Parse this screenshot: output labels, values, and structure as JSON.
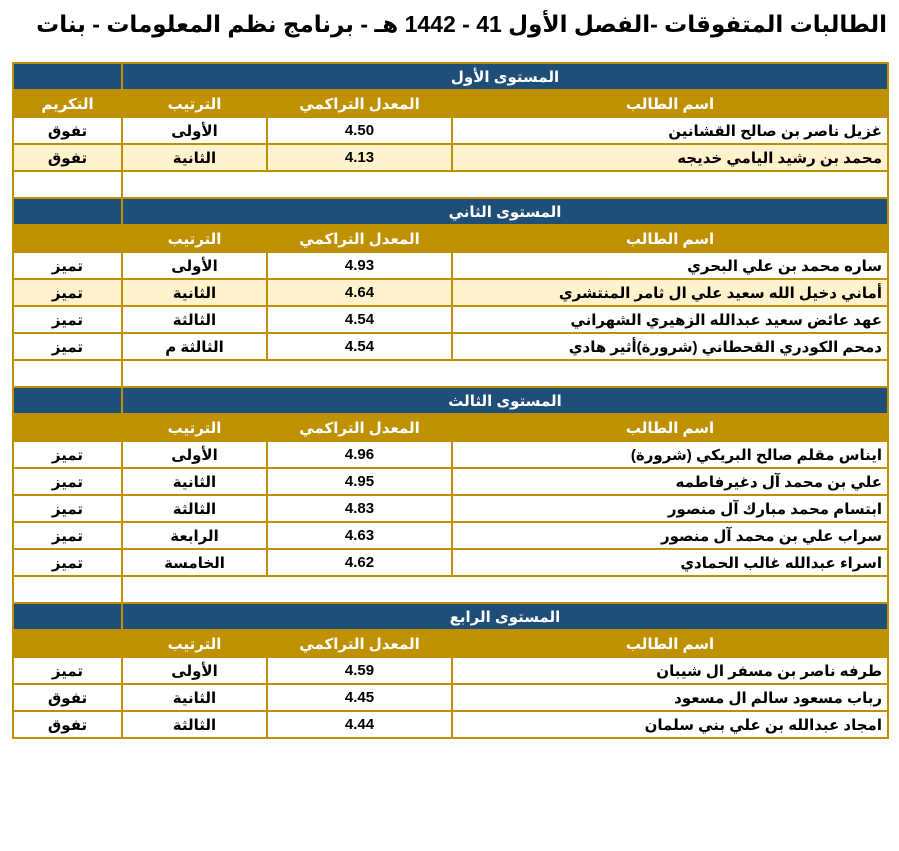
{
  "title": "الطالبات المتفوقات -الفصل الأول 41 - 1442 هـ - برنامج نظم المعلومات - بنات",
  "colors": {
    "level_header": "#1f4e79",
    "column_header": "#bf9000",
    "highlight_row": "#fff2cc",
    "border": "#bf9000"
  },
  "columns": {
    "name": "اسم الطالب",
    "gpa": "المعدل التراكمي",
    "rank": "الترتيب",
    "honor": "التكريم"
  },
  "levels": [
    {
      "title": "المستوى الأول",
      "show_honor_header": true,
      "students": [
        {
          "name": "غزيل ناصر بن صالح القشانين",
          "gpa": "4.50",
          "rank": "الأولى",
          "honor": "تفوق"
        },
        {
          "name": "محمد بن رشيد اليامي خديجه",
          "gpa": "4.13",
          "rank": "الثانية",
          "honor": "تفوق",
          "highlight": true
        }
      ]
    },
    {
      "title": "المستوى الثاني",
      "show_honor_header": false,
      "students": [
        {
          "name": "ساره محمد بن علي البحري",
          "gpa": "4.93",
          "rank": "الأولى",
          "honor": "تميز"
        },
        {
          "name": "أماني دخيل الله سعيد علي ال ثامر المنتشري",
          "gpa": "4.64",
          "rank": "الثانية",
          "honor": "تميز",
          "highlight": true
        },
        {
          "name": "عهد عائض سعيد عبدالله الزهيري الشهراني",
          "gpa": "4.54",
          "rank": "الثالثة",
          "honor": "تميز"
        },
        {
          "name": "دمحم الكودري القحطاني (شرورة)أثير هادي",
          "gpa": "4.54",
          "rank": "الثالثة م",
          "honor": "تميز"
        }
      ]
    },
    {
      "title": "المستوى الثالث",
      "show_honor_header": false,
      "students": [
        {
          "name": "ايناس مقلم صالح البريكي (شرورة)",
          "gpa": "4.96",
          "rank": "الأولى",
          "honor": "تميز"
        },
        {
          "name": "علي بن محمد آل دغيرفاطمه",
          "gpa": "4.95",
          "rank": "الثانية",
          "honor": "تميز"
        },
        {
          "name": "ابتسام محمد مبارك آل منصور",
          "gpa": "4.83",
          "rank": "الثالثة",
          "honor": "تميز"
        },
        {
          "name": "سراب علي بن محمد آل منصور",
          "gpa": "4.63",
          "rank": "الرابعة",
          "honor": "تميز"
        },
        {
          "name": "اسراء عبدالله غالب الحمادي",
          "gpa": "4.62",
          "rank": "الخامسة",
          "honor": "تميز"
        }
      ]
    },
    {
      "title": "المستوى الرابع",
      "show_honor_header": false,
      "students": [
        {
          "name": "طرفه ناصر بن مسفر ال شيبان",
          "gpa": "4.59",
          "rank": "الأولى",
          "honor": "تميز"
        },
        {
          "name": "رباب مسعود سالم ال مسعود",
          "gpa": "4.45",
          "rank": "الثانية",
          "honor": "تفوق"
        },
        {
          "name": "امجاد عبدالله بن علي بني سلمان",
          "gpa": "4.44",
          "rank": "الثالثة",
          "honor": "تفوق"
        }
      ]
    }
  ]
}
